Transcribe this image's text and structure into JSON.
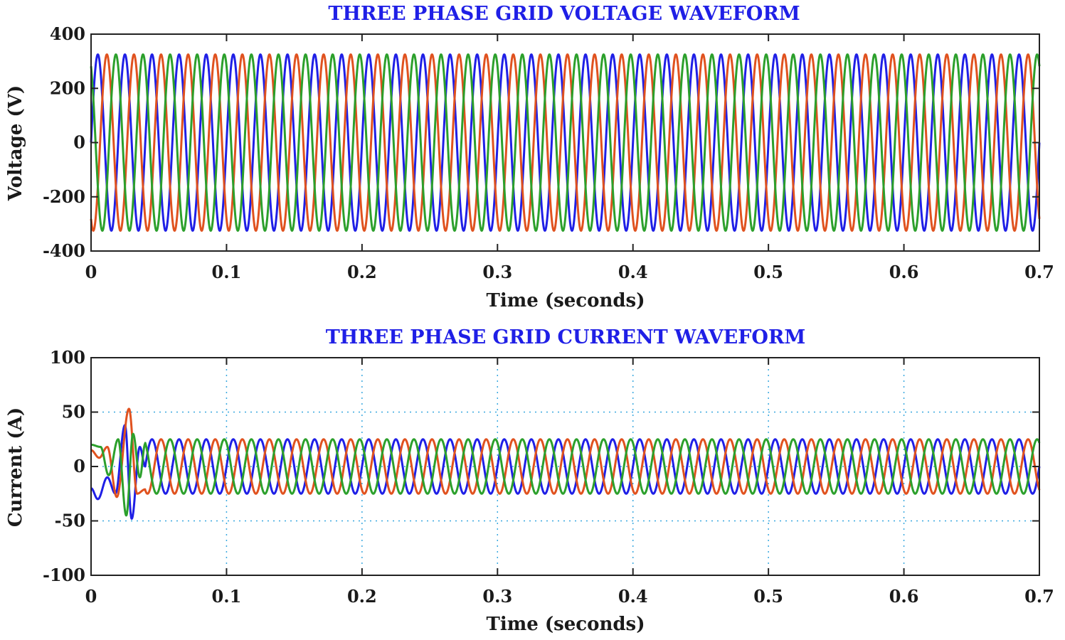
{
  "chart_data": [
    {
      "type": "line",
      "title": "THREE PHASE GRID VOLTAGE WAVEFORM",
      "xlabel": "Time (seconds)",
      "ylabel": "Voltage (V)",
      "xlim": [
        0,
        0.7
      ],
      "ylim": [
        -400,
        400
      ],
      "xticks": [
        0,
        0.1,
        0.2,
        0.3,
        0.4,
        0.5,
        0.6,
        0.7
      ],
      "xtick_labels": [
        "0",
        "0.1",
        "0.2",
        "0.3",
        "0.4",
        "0.5",
        "0.6",
        "0.7"
      ],
      "yticks": [
        -400,
        -200,
        0,
        200,
        400
      ],
      "ytick_labels": [
        "-400",
        "-200",
        "0",
        "200",
        "400"
      ],
      "grid": false,
      "frequency_hz": 50,
      "series": [
        {
          "color": "#1f1fe6",
          "amplitude": 325,
          "phase_deg": 0
        },
        {
          "color": "#e0521f",
          "amplitude": 325,
          "phase_deg": -120
        },
        {
          "color": "#2ca02c",
          "amplitude": 325,
          "phase_deg": 120
        }
      ]
    },
    {
      "type": "line",
      "title": "THREE PHASE GRID CURRENT WAVEFORM",
      "xlabel": "Time (seconds)",
      "ylabel": "Current (A)",
      "xlim": [
        0,
        0.7
      ],
      "ylim": [
        -100,
        100
      ],
      "xticks": [
        0,
        0.1,
        0.2,
        0.3,
        0.4,
        0.5,
        0.6,
        0.7
      ],
      "xtick_labels": [
        "0",
        "0.1",
        "0.2",
        "0.3",
        "0.4",
        "0.5",
        "0.6",
        "0.7"
      ],
      "yticks": [
        -100,
        -50,
        0,
        50,
        100
      ],
      "ytick_labels": [
        "-100",
        "-50",
        "0",
        "50",
        "100"
      ],
      "grid": true,
      "frequency_hz": 50,
      "transient_end": 0.04,
      "series": [
        {
          "color": "#1f1fe6",
          "amplitude": 25,
          "phase_deg": 0,
          "transient": [
            [
              0,
              -20
            ],
            [
              0.005,
              -30
            ],
            [
              0.012,
              -10
            ],
            [
              0.018,
              -25
            ],
            [
              0.025,
              38
            ],
            [
              0.03,
              -48
            ],
            [
              0.036,
              18
            ],
            [
              0.04,
              0
            ]
          ]
        },
        {
          "color": "#e0521f",
          "amplitude": 25,
          "phase_deg": -120,
          "transient": [
            [
              0,
              15
            ],
            [
              0.006,
              8
            ],
            [
              0.012,
              18
            ],
            [
              0.019,
              -28
            ],
            [
              0.028,
              53
            ],
            [
              0.034,
              -25
            ],
            [
              0.04,
              -21
            ]
          ]
        },
        {
          "color": "#2ca02c",
          "amplitude": 25,
          "phase_deg": 120,
          "transient": [
            [
              0,
              20
            ],
            [
              0.007,
              18
            ],
            [
              0.013,
              -8
            ],
            [
              0.02,
              25
            ],
            [
              0.026,
              -45
            ],
            [
              0.031,
              30
            ],
            [
              0.036,
              -10
            ],
            [
              0.04,
              21
            ]
          ]
        }
      ]
    }
  ]
}
